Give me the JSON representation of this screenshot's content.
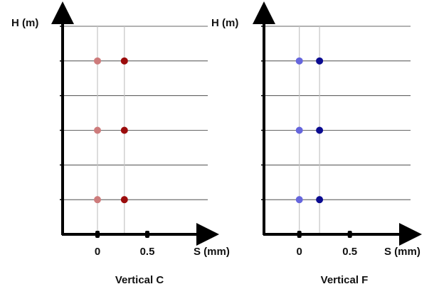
{
  "chart_data": [
    {
      "type": "scatter",
      "title": "Vertical C",
      "xlabel": "S (mm)",
      "ylabel": "H (m)",
      "x_ticks": [
        0,
        0.5
      ],
      "x_tick_labels": [
        "0",
        "0.5"
      ],
      "xlim": [
        -0.35,
        1.0
      ],
      "ylim": [
        0,
        6
      ],
      "grid": true,
      "series": [
        {
          "color": "#cd7b7b",
          "points": [
            [
              0,
              1
            ],
            [
              0,
              3
            ],
            [
              0,
              5
            ]
          ]
        },
        {
          "color": "#9b0c0c",
          "points": [
            [
              0.27,
              1
            ],
            [
              0.27,
              3
            ],
            [
              0.27,
              5
            ]
          ]
        }
      ]
    },
    {
      "type": "scatter",
      "title": "Vertical F",
      "xlabel": "S (mm)",
      "ylabel": "H (m)",
      "x_ticks": [
        0,
        0.5
      ],
      "x_tick_labels": [
        "0",
        "0.5"
      ],
      "xlim": [
        -0.35,
        1.0
      ],
      "ylim": [
        0,
        6
      ],
      "grid": true,
      "series": [
        {
          "color": "#6666dd",
          "points": [
            [
              0,
              1
            ],
            [
              0,
              3
            ],
            [
              0,
              5
            ]
          ]
        },
        {
          "color": "#0a0a90",
          "points": [
            [
              0.2,
              1
            ],
            [
              0.2,
              3
            ],
            [
              0.2,
              5
            ]
          ]
        }
      ]
    }
  ]
}
